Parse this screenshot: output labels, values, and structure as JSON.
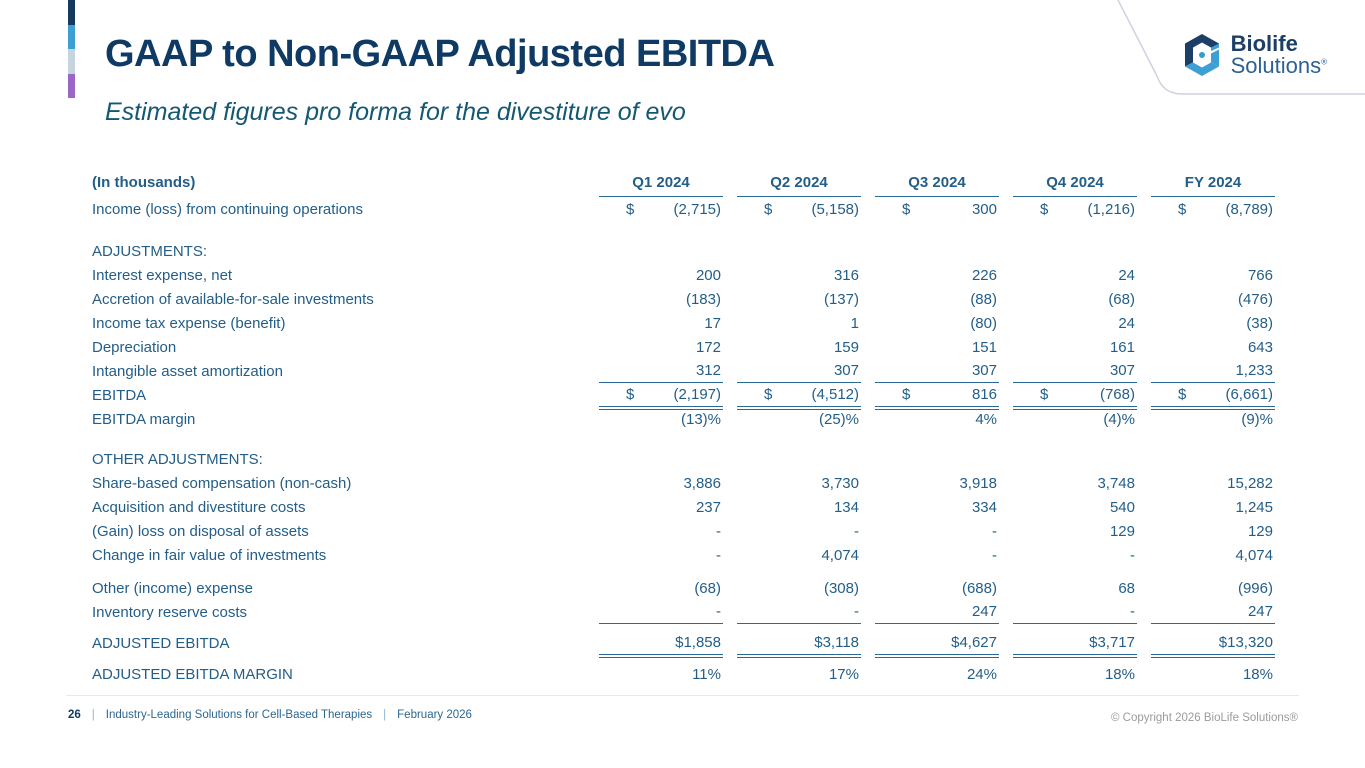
{
  "slide": {
    "title": "GAAP to Non-GAAP Adjusted EBITDA",
    "subtitle": "Estimated figures pro forma for the divestiture of evo",
    "accent_bar_colors": [
      "#16395e",
      "#3d9fd3",
      "#c6d4de",
      "#9a67c6"
    ]
  },
  "logo": {
    "line1": "Biolife",
    "line2": "Solutions",
    "registered": "®"
  },
  "table": {
    "unit_label": "(In thousands)",
    "columns": [
      "Q1 2024",
      "Q2 2024",
      "Q3 2024",
      "Q4 2024",
      "FY 2024"
    ],
    "rows": [
      {
        "type": "data",
        "label": "Income (loss) from continuing operations",
        "dollar": true,
        "values": [
          "(2,715)",
          "(5,158)",
          "300",
          "(1,216)",
          "(8,789)"
        ]
      },
      {
        "type": "spacer",
        "height": 18
      },
      {
        "type": "section",
        "label": "ADJUSTMENTS:"
      },
      {
        "type": "data",
        "label": "Interest expense, net",
        "values": [
          "200",
          "316",
          "226",
          "24",
          "766"
        ]
      },
      {
        "type": "data",
        "label": "Accretion of available-for-sale investments",
        "values": [
          "(183)",
          "(137)",
          "(88)",
          "(68)",
          "(476)"
        ]
      },
      {
        "type": "data",
        "label": "Income tax expense (benefit)",
        "values": [
          "17",
          "1",
          "(80)",
          "24",
          "(38)"
        ]
      },
      {
        "type": "data",
        "label": "Depreciation",
        "values": [
          "172",
          "159",
          "151",
          "161",
          "643"
        ]
      },
      {
        "type": "data",
        "label": "Intangible asset amortization",
        "underline": "single",
        "values": [
          "312",
          "307",
          "307",
          "307",
          "1,233"
        ]
      },
      {
        "type": "data",
        "label": "EBITDA",
        "dollar": true,
        "underline": "double",
        "values": [
          "(2,197)",
          "(4,512)",
          "816",
          "(768)",
          "(6,661)"
        ]
      },
      {
        "type": "data",
        "label": "EBITDA margin",
        "values": [
          "(13)%",
          "(25)%",
          "4%",
          "(4)%",
          "(9)%"
        ]
      },
      {
        "type": "spacer",
        "height": 16
      },
      {
        "type": "section",
        "label": "OTHER ADJUSTMENTS:"
      },
      {
        "type": "data",
        "label": "Share-based compensation (non-cash)",
        "values": [
          "3,886",
          "3,730",
          "3,918",
          "3,748",
          "15,282"
        ]
      },
      {
        "type": "data",
        "label": "Acquisition and divestiture costs",
        "values": [
          "237",
          "134",
          "334",
          "540",
          "1,245"
        ]
      },
      {
        "type": "data",
        "label": "(Gain) loss on disposal of assets",
        "values": [
          "-",
          "-",
          "-",
          "129",
          "129"
        ]
      },
      {
        "type": "data",
        "label": "Change in fair value of investments",
        "values": [
          "-",
          "4,074",
          "-",
          "-",
          "4,074"
        ]
      },
      {
        "type": "spacer",
        "height": 9
      },
      {
        "type": "data",
        "label": "Other (income) expense",
        "values": [
          "(68)",
          "(308)",
          "(688)",
          "68",
          "(996)"
        ]
      },
      {
        "type": "data",
        "label": "Inventory reserve costs",
        "underline": "single",
        "values": [
          "-",
          "-",
          "247",
          "-",
          "247"
        ]
      },
      {
        "type": "spacer",
        "height": 7
      },
      {
        "type": "data",
        "label": "ADJUSTED EBITDA",
        "underline": "double",
        "values": [
          "$1,858",
          "$3,118",
          "$4,627",
          "$3,717",
          "$13,320"
        ]
      },
      {
        "type": "spacer",
        "height": 7
      },
      {
        "type": "data",
        "label": "ADJUSTED EBITDA MARGIN",
        "values": [
          "11%",
          "17%",
          "24%",
          "18%",
          "18%"
        ]
      }
    ]
  },
  "footer": {
    "page_number": "26",
    "separator": "|",
    "tagline": "Industry-Leading Solutions for Cell-Based Therapies",
    "date": "February 2026",
    "copyright": "© Copyright 2026 BioLife Solutions®"
  }
}
